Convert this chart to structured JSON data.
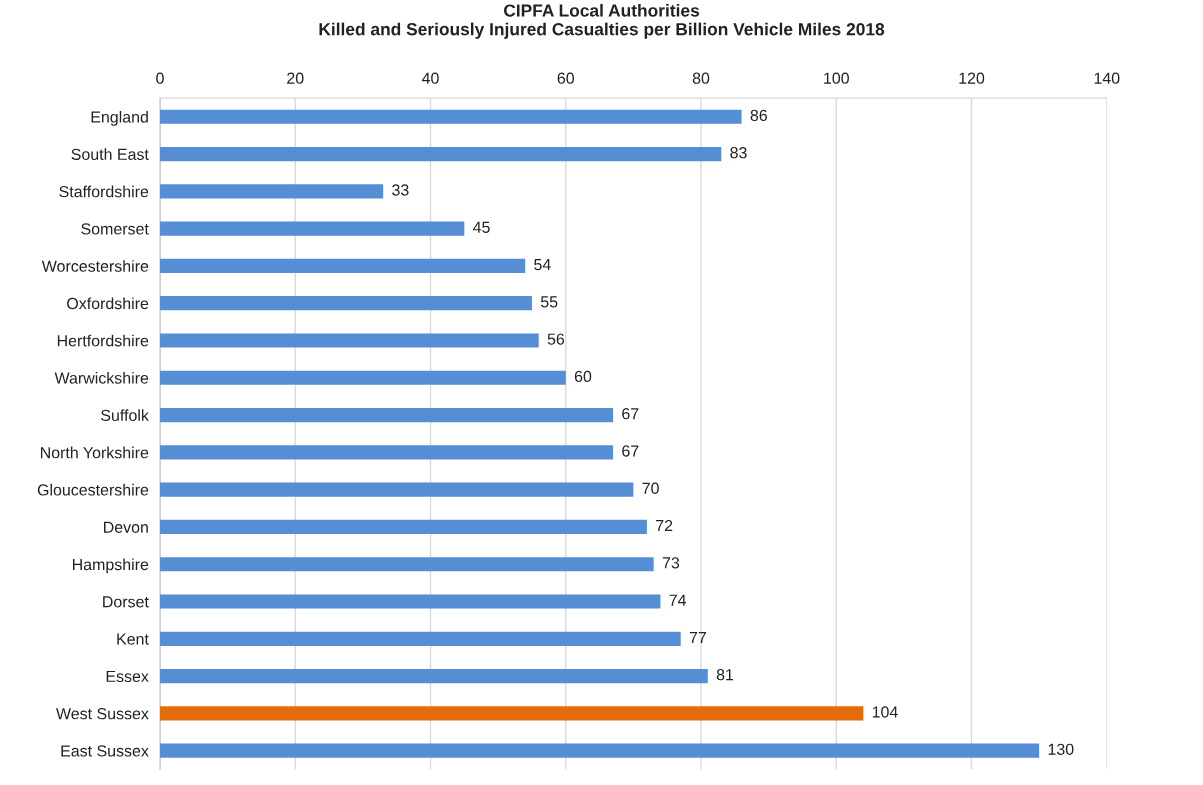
{
  "chart_data": {
    "type": "bar",
    "orientation": "horizontal",
    "title": "CIPFA Local Authorities\nKilled and Seriously Injured Casualties per Billion Vehicle Miles 2018",
    "categories": [
      "England",
      "South East",
      "Staffordshire",
      "Somerset",
      "Worcestershire",
      "Oxfordshire",
      "Hertfordshire",
      "Warwickshire",
      "Suffolk",
      "North Yorkshire",
      "Gloucestershire",
      "Devon",
      "Hampshire",
      "Dorset",
      "Kent",
      "Essex",
      "West Sussex",
      "East Sussex"
    ],
    "values": [
      86,
      83,
      33,
      45,
      54,
      55,
      56,
      60,
      67,
      67,
      70,
      72,
      73,
      74,
      77,
      81,
      104,
      130
    ],
    "colors": [
      "#558ed5",
      "#558ed5",
      "#558ed5",
      "#558ed5",
      "#558ed5",
      "#558ed5",
      "#558ed5",
      "#558ed5",
      "#558ed5",
      "#558ed5",
      "#558ed5",
      "#558ed5",
      "#558ed5",
      "#558ed5",
      "#558ed5",
      "#558ed5",
      "#e46c0a",
      "#558ed5"
    ],
    "xlim": [
      0,
      140
    ],
    "xticks": [
      0,
      20,
      40,
      60,
      80,
      100,
      120,
      140
    ],
    "grid": "x",
    "data_labels": true,
    "legend": false
  }
}
